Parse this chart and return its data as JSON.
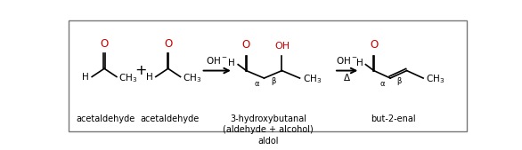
{
  "bg_color": "#ffffff",
  "border_color": "#777777",
  "oxygen_color": "#cc0000",
  "text_color": "#000000",
  "fig_width": 5.86,
  "fig_height": 1.69,
  "label1": "acetaldehyde",
  "label2": "acetaldehyde",
  "label3": "3-hydroxybutanal\n(aldehyde + alcohol)\naldol",
  "label4": "but-2-enal"
}
